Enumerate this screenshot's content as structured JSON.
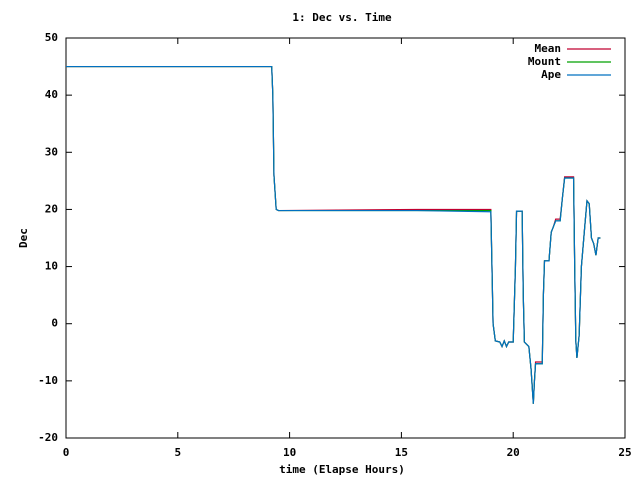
{
  "chart_data": {
    "type": "line",
    "title": "1: Dec vs. Time",
    "x_label": "time (Elapse Hours)",
    "y_label": "Dec",
    "x": [
      0,
      9.2,
      9.25,
      9.3,
      9.4,
      9.5,
      15.7,
      19.0,
      19.05,
      19.1,
      19.2,
      19.4,
      19.5,
      19.6,
      19.7,
      19.8,
      20.0,
      20.1,
      20.15,
      20.4,
      20.45,
      20.5,
      20.7,
      20.8,
      20.9,
      20.95,
      21.0,
      21.3,
      21.35,
      21.4,
      21.6,
      21.7,
      21.8,
      21.9,
      22.1,
      22.2,
      22.3,
      22.7,
      22.75,
      22.8,
      22.85,
      22.95,
      23.05,
      23.2,
      23.3,
      23.4,
      23.5,
      23.6,
      23.7,
      23.8,
      23.9
    ],
    "series": [
      {
        "name": "Mean",
        "color": "#c00030",
        "values": [
          45,
          45,
          40,
          26,
          20,
          19.8,
          20,
          20,
          10,
          0,
          -3,
          -3.2,
          -4,
          -3,
          -4,
          -3.2,
          -3.2,
          10,
          19.7,
          19.7,
          5,
          -3.2,
          -4,
          -8,
          -14,
          -10,
          -6.7,
          -6.7,
          5,
          11,
          11,
          16,
          17,
          18.3,
          18.3,
          22,
          25.7,
          25.7,
          10,
          -3,
          -6,
          -2,
          10,
          17,
          21.5,
          21,
          15,
          14,
          12,
          15,
          15
        ]
      },
      {
        "name": "Mount",
        "color": "#00a000",
        "values": [
          45,
          45,
          40,
          26,
          20,
          19.8,
          19.8,
          19.8,
          10,
          0,
          -3,
          -3.2,
          -4,
          -3,
          -4,
          -3.2,
          -3.2,
          10,
          19.7,
          19.7,
          5,
          -3.2,
          -4,
          -8,
          -14,
          -10,
          -7,
          -7,
          5,
          11,
          11,
          16,
          17,
          18,
          18,
          22,
          25.5,
          25.5,
          10,
          -3,
          -6,
          -2,
          10,
          17,
          21.5,
          21,
          15,
          14,
          12,
          15,
          15
        ]
      },
      {
        "name": "Ape",
        "color": "#0070c0",
        "values": [
          45,
          45,
          40,
          26,
          20,
          19.8,
          19.8,
          19.6,
          10,
          0,
          -3,
          -3.2,
          -4,
          -3,
          -4,
          -3.2,
          -3.2,
          10,
          19.7,
          19.7,
          5,
          -3.2,
          -4,
          -8,
          -14,
          -10,
          -7,
          -7,
          5,
          11,
          11,
          16,
          17,
          18,
          18,
          22,
          25.5,
          25.5,
          10,
          -3,
          -6,
          -2,
          10,
          17,
          21.5,
          21,
          15,
          14,
          12,
          15,
          15
        ]
      }
    ],
    "xlim": [
      0,
      25
    ],
    "xticks": [
      0,
      5,
      10,
      15,
      20,
      25
    ],
    "ylim": [
      -20,
      50
    ],
    "yticks": [
      -20,
      -10,
      0,
      10,
      20,
      30,
      40,
      50
    ],
    "legend": "top-right"
  }
}
